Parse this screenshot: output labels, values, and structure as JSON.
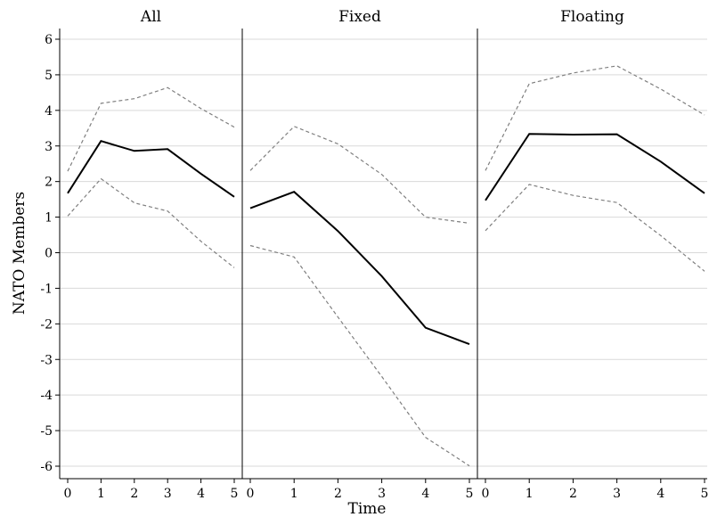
{
  "chart_data": {
    "type": "line",
    "xlabel": "Time",
    "ylabel": "NATO Members",
    "ylim": [
      -6,
      6
    ],
    "yticks": [
      "-6",
      "-5",
      "-4",
      "-3",
      "-2",
      "-1",
      "0",
      "1",
      "2",
      "3",
      "4",
      "5",
      "6"
    ],
    "xticks": [
      "0",
      "1",
      "2",
      "3",
      "4",
      "5"
    ],
    "grid": true,
    "panels": [
      {
        "title": "All",
        "x": [
          0,
          1,
          2,
          3,
          4,
          5
        ],
        "series": [
          {
            "values": [
              1.67,
              3.14,
              2.86,
              2.91,
              2.22,
              1.57
            ]
          },
          {
            "values": [
              2.29,
              4.2,
              4.33,
              4.64,
              4.05,
              3.53
            ]
          },
          {
            "values": [
              1.03,
              2.08,
              1.4,
              1.17,
              0.32,
              -0.42
            ]
          }
        ]
      },
      {
        "title": "Fixed",
        "x": [
          0,
          1,
          2,
          3,
          4,
          5
        ],
        "series": [
          {
            "values": [
              1.25,
              1.71,
              0.61,
              -0.66,
              -2.11,
              -2.57
            ]
          },
          {
            "values": [
              2.31,
              3.55,
              3.06,
              2.2,
              1.0,
              0.83
            ]
          },
          {
            "values": [
              0.2,
              -0.12,
              -1.81,
              -3.48,
              -5.19,
              -5.99
            ]
          }
        ]
      },
      {
        "title": "Floating",
        "x": [
          0,
          1,
          2,
          3,
          4,
          5
        ],
        "series": [
          {
            "values": [
              1.47,
              3.34,
              3.32,
              3.33,
              2.56,
              1.67
            ]
          },
          {
            "values": [
              2.31,
              4.75,
              5.05,
              5.25,
              4.6,
              3.87
            ]
          },
          {
            "values": [
              0.62,
              1.92,
              1.61,
              1.41,
              0.48,
              -0.52
            ]
          }
        ]
      }
    ]
  }
}
